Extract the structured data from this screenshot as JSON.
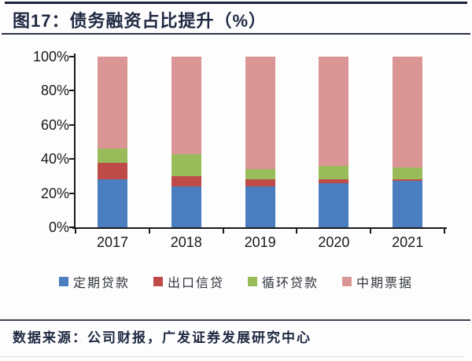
{
  "header": {
    "title": "图17：债务融资占比提升（%）"
  },
  "footer": {
    "source": "数据来源：公司财报，广发证券发展研究中心"
  },
  "chart_data": {
    "type": "bar",
    "stacked": true,
    "stacked_to_100": true,
    "title": "债务融资占比提升（%）",
    "xlabel": "",
    "ylabel": "",
    "categories": [
      "2017",
      "2018",
      "2019",
      "2020",
      "2021"
    ],
    "series": [
      {
        "name": "定期贷款",
        "color": "#4A7EBE",
        "values": [
          28,
          24,
          24,
          26,
          27
        ]
      },
      {
        "name": "出口信贷",
        "color": "#BE4B48",
        "values": [
          10,
          6,
          4,
          2,
          1
        ]
      },
      {
        "name": "循环贷款",
        "color": "#9ABB59",
        "values": [
          8,
          13,
          6,
          8,
          7
        ]
      },
      {
        "name": "中期票据",
        "color": "#D99694",
        "values": [
          54,
          57,
          66,
          64,
          65
        ]
      }
    ],
    "ylim": [
      0,
      100
    ],
    "ytick_labels": [
      "0%",
      "20%",
      "40%",
      "60%",
      "80%",
      "100%"
    ],
    "grid": false,
    "legend_position": "bottom"
  }
}
